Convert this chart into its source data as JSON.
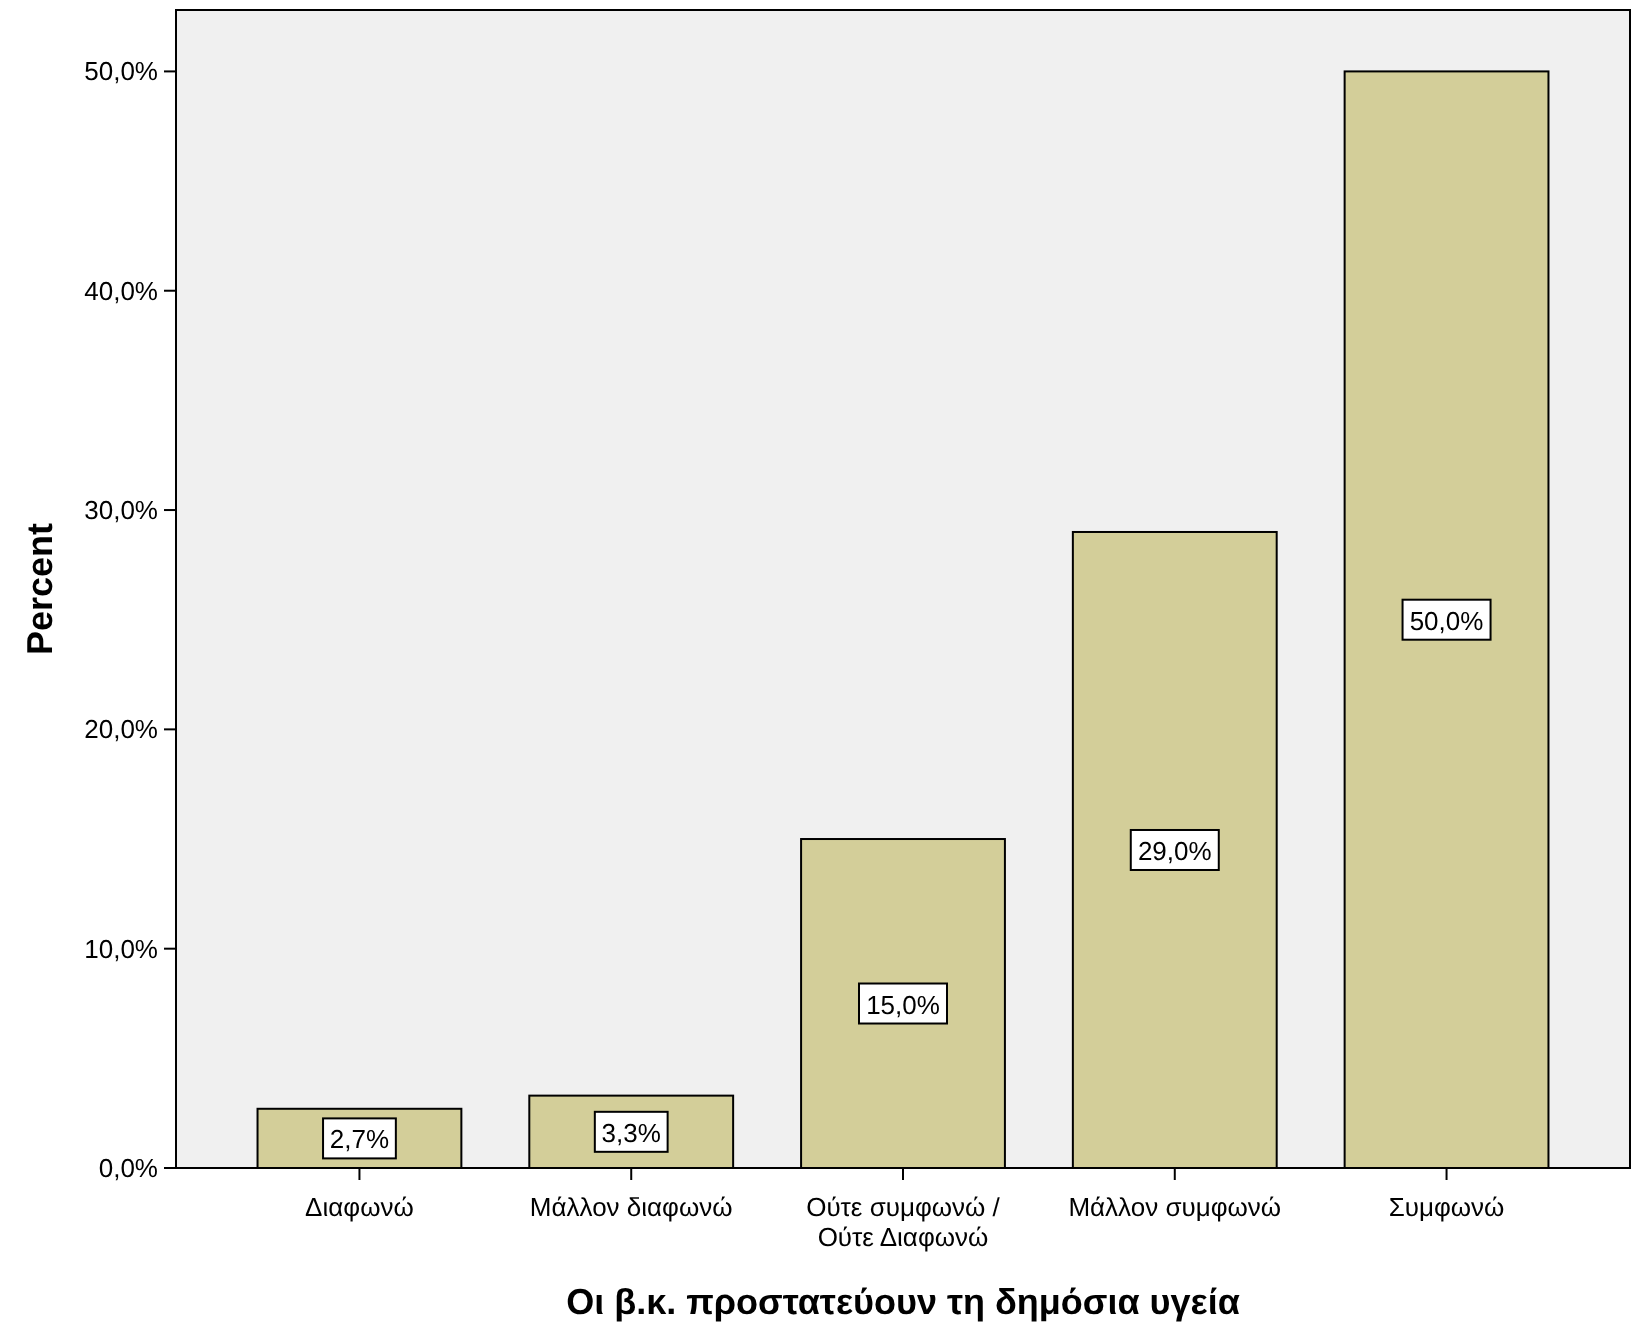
{
  "chart_data": {
    "type": "bar",
    "xlabel": "Οι β.κ. προστατεύουν τη δημόσια υγεία",
    "ylabel": "Percent",
    "categories": [
      "Διαφωνώ",
      "Μάλλον διαφωνώ",
      "Ούτε συμφωνώ / Ούτε Διαφωνώ",
      "Μάλλον συμφωνώ",
      "Συμφωνώ"
    ],
    "values": [
      2.7,
      3.3,
      15.0,
      29.0,
      50.0
    ],
    "value_labels": [
      "2,7%",
      "3,3%",
      "15,0%",
      "29,0%",
      "50,0%"
    ],
    "color": "#d3ce99",
    "ylim": [
      0,
      52.8
    ],
    "yticks": [
      {
        "value": 0,
        "label": "0,0%"
      },
      {
        "value": 10,
        "label": "10,0%"
      },
      {
        "value": 20,
        "label": "20,0%"
      },
      {
        "value": 30,
        "label": "30,0%"
      },
      {
        "value": 40,
        "label": "40,0%"
      },
      {
        "value": 50,
        "label": "50,0%"
      }
    ],
    "grid": false
  }
}
